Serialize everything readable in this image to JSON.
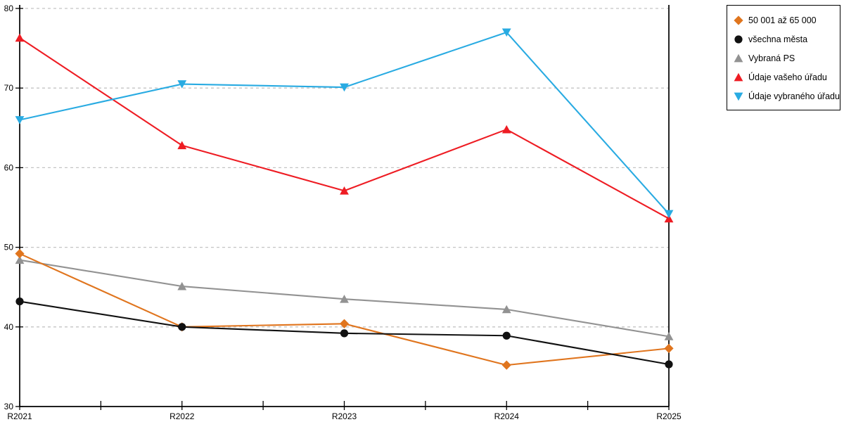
{
  "chart_data": {
    "type": "line",
    "title": "",
    "xlabel": "",
    "ylabel": "",
    "x_labels": [
      "R2021",
      "R2022",
      "R2023",
      "R2024",
      "R2025"
    ],
    "ylim": [
      30,
      80
    ],
    "y_ticks": [
      30,
      40,
      50,
      60,
      70,
      80
    ],
    "grid": "horizontal-dashed",
    "legend_position": "outside-top-right",
    "series": [
      {
        "name": "50 001 až 65 000",
        "color": "#E0751E",
        "marker": "diamond",
        "values": [
          49.2,
          40.0,
          40.4,
          35.2,
          37.3
        ]
      },
      {
        "name": "všechna města",
        "color": "#111111",
        "marker": "circle",
        "values": [
          43.2,
          40.0,
          39.2,
          38.9,
          35.3
        ]
      },
      {
        "name": "Vybraná PS",
        "color": "#929292",
        "marker": "triangle-up",
        "values": [
          48.4,
          45.1,
          43.5,
          42.2,
          38.8
        ]
      },
      {
        "name": "Údaje vašeho úřadu",
        "color": "#EE1C23",
        "marker": "triangle-up",
        "values": [
          76.3,
          62.8,
          57.1,
          64.8,
          53.6
        ]
      },
      {
        "name": "Údaje vybraného úřadu",
        "color": "#29ABE2",
        "marker": "triangle-down",
        "values": [
          66.0,
          70.5,
          70.1,
          77.0,
          54.2
        ]
      }
    ]
  },
  "colors": {
    "grid": "#C4C4C4",
    "axis": "#000000",
    "background": "#FFFFFF"
  }
}
